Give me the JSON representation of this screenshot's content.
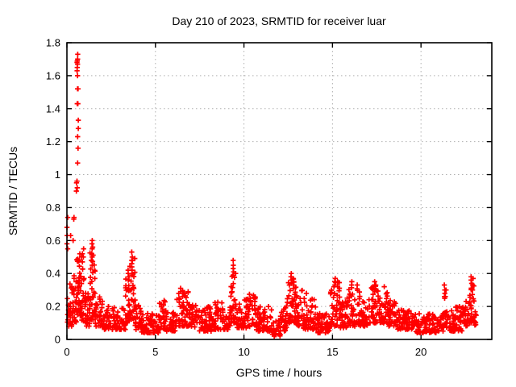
{
  "chart_data": {
    "type": "scatter",
    "title": "Day 210 of 2023, SRMTID for receiver luar",
    "xlabel": "GPS time / hours",
    "ylabel": "SRMTID / TECUs",
    "xlim": [
      0,
      24
    ],
    "ylim": [
      0,
      1.8
    ],
    "xtick_values": [
      0,
      5,
      10,
      15,
      20
    ],
    "xtick_labels": [
      "0",
      "5",
      "10",
      "15",
      "20"
    ],
    "ytick_values": [
      0,
      0.2,
      0.4,
      0.6,
      0.8,
      1.0,
      1.2,
      1.4,
      1.6,
      1.8
    ],
    "ytick_labels": [
      "0",
      "0.2",
      "0.4",
      "0.6",
      "0.8",
      "1",
      "1.2",
      "1.4",
      "1.6",
      "1.8"
    ],
    "grid": true,
    "legend": "none",
    "marker": "plus",
    "colors": {
      "marker": "#ff0000",
      "grid": "#b0b0b0",
      "border": "#000000",
      "background": "#ffffff"
    },
    "peak_columns": [
      {
        "x": 0.02,
        "ys": [
          0.74,
          0.68,
          0.63,
          0.58,
          0.55
        ]
      },
      {
        "x": 0.23,
        "ys": [
          0.63
        ]
      },
      {
        "x": 0.32,
        "ys": [
          0.6
        ]
      },
      {
        "x": 0.4,
        "ys": [
          0.74,
          0.73
        ]
      },
      {
        "x": 0.58,
        "ys": [
          1.73,
          1.7,
          1.69,
          1.68,
          1.67,
          1.65,
          1.63,
          1.6,
          1.52,
          1.43
        ]
      },
      {
        "x": 0.62,
        "ys": [
          1.52,
          1.43,
          1.33,
          1.28,
          1.23,
          1.16,
          1.07
        ]
      },
      {
        "x": 0.55,
        "ys": [
          0.96,
          0.95,
          0.9
        ]
      },
      {
        "x": 0.6,
        "ys": [
          0.92
        ]
      },
      {
        "x": 0.85,
        "ys": [
          0.52,
          0.5,
          0.47
        ]
      },
      {
        "x": 0.95,
        "ys": [
          0.55,
          0.5
        ]
      },
      {
        "x": 1.4,
        "ys": [
          0.6,
          0.58,
          0.55,
          0.52,
          0.48,
          0.45
        ]
      },
      {
        "x": 1.45,
        "ys": [
          0.56,
          0.5
        ]
      },
      {
        "x": 3.48,
        "ys": [
          0.42,
          0.4,
          0.38,
          0.36
        ]
      },
      {
        "x": 3.68,
        "ys": [
          0.53,
          0.5,
          0.48,
          0.46,
          0.44,
          0.42,
          0.4
        ]
      },
      {
        "x": 6.4,
        "ys": [
          0.31,
          0.29
        ]
      },
      {
        "x": 6.6,
        "ys": [
          0.28
        ]
      },
      {
        "x": 9.4,
        "ys": [
          0.48,
          0.45,
          0.43,
          0.41,
          0.39
        ]
      },
      {
        "x": 12.65,
        "ys": [
          0.4,
          0.38,
          0.36,
          0.34
        ]
      },
      {
        "x": 12.8,
        "ys": [
          0.37,
          0.35,
          0.33
        ]
      },
      {
        "x": 13.5,
        "ys": [
          0.28
        ]
      },
      {
        "x": 15.15,
        "ys": [
          0.37,
          0.35,
          0.33
        ]
      },
      {
        "x": 15.3,
        "ys": [
          0.35,
          0.32
        ]
      },
      {
        "x": 16.1,
        "ys": [
          0.35,
          0.33
        ]
      },
      {
        "x": 16.4,
        "ys": [
          0.33
        ]
      },
      {
        "x": 17.4,
        "ys": [
          0.35,
          0.33
        ]
      },
      {
        "x": 17.9,
        "ys": [
          0.32
        ]
      },
      {
        "x": 21.32,
        "ys": [
          0.33,
          0.3,
          0.28,
          0.26,
          0.25
        ]
      },
      {
        "x": 21.4,
        "ys": [
          0.3,
          0.26
        ]
      },
      {
        "x": 22.85,
        "ys": [
          0.38,
          0.36,
          0.34,
          0.31
        ]
      },
      {
        "x": 22.92,
        "ys": [
          0.37,
          0.33,
          0.3
        ]
      }
    ],
    "noise_bands": [
      {
        "x0": 0.0,
        "x1": 0.3,
        "ylo": 0.08,
        "yhi": 0.35,
        "n": 25
      },
      {
        "x0": 0.3,
        "x1": 0.55,
        "ylo": 0.1,
        "yhi": 0.4,
        "n": 25
      },
      {
        "x0": 0.55,
        "x1": 0.75,
        "ylo": 0.15,
        "yhi": 0.55,
        "n": 30
      },
      {
        "x0": 0.75,
        "x1": 1.1,
        "ylo": 0.1,
        "yhi": 0.45,
        "n": 35
      },
      {
        "x0": 1.1,
        "x1": 1.3,
        "ylo": 0.08,
        "yhi": 0.3,
        "n": 20
      },
      {
        "x0": 1.3,
        "x1": 1.6,
        "ylo": 0.12,
        "yhi": 0.55,
        "n": 35
      },
      {
        "x0": 1.6,
        "x1": 2.1,
        "ylo": 0.08,
        "yhi": 0.28,
        "n": 35
      },
      {
        "x0": 2.1,
        "x1": 3.3,
        "ylo": 0.06,
        "yhi": 0.2,
        "n": 75
      },
      {
        "x0": 3.3,
        "x1": 3.55,
        "ylo": 0.1,
        "yhi": 0.38,
        "n": 25
      },
      {
        "x0": 3.55,
        "x1": 3.85,
        "ylo": 0.12,
        "yhi": 0.5,
        "n": 30
      },
      {
        "x0": 3.85,
        "x1": 4.2,
        "ylo": 0.06,
        "yhi": 0.22,
        "n": 25
      },
      {
        "x0": 4.2,
        "x1": 5.2,
        "ylo": 0.04,
        "yhi": 0.16,
        "n": 65
      },
      {
        "x0": 5.2,
        "x1": 5.6,
        "ylo": 0.06,
        "yhi": 0.26,
        "n": 30
      },
      {
        "x0": 5.6,
        "x1": 6.15,
        "ylo": 0.05,
        "yhi": 0.18,
        "n": 35
      },
      {
        "x0": 6.15,
        "x1": 6.85,
        "ylo": 0.08,
        "yhi": 0.3,
        "n": 50
      },
      {
        "x0": 6.85,
        "x1": 7.4,
        "ylo": 0.07,
        "yhi": 0.22,
        "n": 38
      },
      {
        "x0": 7.4,
        "x1": 8.2,
        "ylo": 0.05,
        "yhi": 0.2,
        "n": 55
      },
      {
        "x0": 8.2,
        "x1": 8.8,
        "ylo": 0.06,
        "yhi": 0.24,
        "n": 42
      },
      {
        "x0": 8.8,
        "x1": 9.25,
        "ylo": 0.06,
        "yhi": 0.2,
        "n": 30
      },
      {
        "x0": 9.25,
        "x1": 9.55,
        "ylo": 0.1,
        "yhi": 0.42,
        "n": 30
      },
      {
        "x0": 9.55,
        "x1": 10.2,
        "ylo": 0.07,
        "yhi": 0.25,
        "n": 45
      },
      {
        "x0": 10.2,
        "x1": 10.7,
        "ylo": 0.07,
        "yhi": 0.28,
        "n": 35
      },
      {
        "x0": 10.7,
        "x1": 11.6,
        "ylo": 0.05,
        "yhi": 0.2,
        "n": 60
      },
      {
        "x0": 11.6,
        "x1": 12.05,
        "ylo": 0.02,
        "yhi": 0.12,
        "n": 30
      },
      {
        "x0": 12.05,
        "x1": 12.45,
        "ylo": 0.05,
        "yhi": 0.22,
        "n": 28
      },
      {
        "x0": 12.45,
        "x1": 12.95,
        "ylo": 0.1,
        "yhi": 0.38,
        "n": 45
      },
      {
        "x0": 12.95,
        "x1": 13.35,
        "ylo": 0.08,
        "yhi": 0.3,
        "n": 30
      },
      {
        "x0": 13.35,
        "x1": 14.15,
        "ylo": 0.06,
        "yhi": 0.25,
        "n": 55
      },
      {
        "x0": 14.15,
        "x1": 14.85,
        "ylo": 0.04,
        "yhi": 0.16,
        "n": 48
      },
      {
        "x0": 14.85,
        "x1": 15.45,
        "ylo": 0.08,
        "yhi": 0.35,
        "n": 45
      },
      {
        "x0": 15.45,
        "x1": 15.8,
        "ylo": 0.07,
        "yhi": 0.25,
        "n": 25
      },
      {
        "x0": 15.8,
        "x1": 16.55,
        "ylo": 0.08,
        "yhi": 0.32,
        "n": 55
      },
      {
        "x0": 16.55,
        "x1": 17.05,
        "ylo": 0.08,
        "yhi": 0.24,
        "n": 35
      },
      {
        "x0": 17.05,
        "x1": 17.55,
        "ylo": 0.1,
        "yhi": 0.33,
        "n": 38
      },
      {
        "x0": 17.55,
        "x1": 18.15,
        "ylo": 0.1,
        "yhi": 0.3,
        "n": 42
      },
      {
        "x0": 18.15,
        "x1": 18.65,
        "ylo": 0.08,
        "yhi": 0.24,
        "n": 35
      },
      {
        "x0": 18.65,
        "x1": 19.6,
        "ylo": 0.06,
        "yhi": 0.18,
        "n": 62
      },
      {
        "x0": 19.6,
        "x1": 20.9,
        "ylo": 0.04,
        "yhi": 0.16,
        "n": 85
      },
      {
        "x0": 20.9,
        "x1": 21.25,
        "ylo": 0.05,
        "yhi": 0.15,
        "n": 22
      },
      {
        "x0": 21.25,
        "x1": 21.45,
        "ylo": 0.06,
        "yhi": 0.18,
        "n": 14
      },
      {
        "x0": 21.45,
        "x1": 22.35,
        "ylo": 0.05,
        "yhi": 0.2,
        "n": 60
      },
      {
        "x0": 22.35,
        "x1": 22.65,
        "ylo": 0.08,
        "yhi": 0.25,
        "n": 22
      },
      {
        "x0": 22.65,
        "x1": 23.0,
        "ylo": 0.1,
        "yhi": 0.33,
        "n": 28
      },
      {
        "x0": 22.95,
        "x1": 23.15,
        "ylo": 0.08,
        "yhi": 0.18,
        "n": 10
      }
    ]
  }
}
